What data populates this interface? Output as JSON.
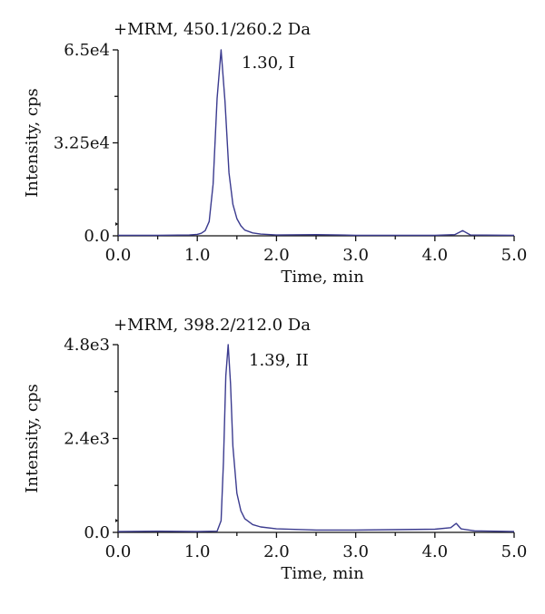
{
  "chart_data": [
    {
      "type": "line",
      "title": "+MRM, 450.1/260.2 Da",
      "xlabel": "Time, min",
      "ylabel": "Intensity, cps",
      "xlim": [
        0,
        5
      ],
      "ylim": [
        0,
        65000
      ],
      "x_ticks": [
        "0.0",
        "1.0",
        "2.0",
        "3.0",
        "4.0",
        "5.0"
      ],
      "y_ticks": [
        "0.0",
        "3.25e4",
        "6.5e4"
      ],
      "y_tick_values": [
        0,
        32500,
        65000
      ],
      "annotation": "1.30, I",
      "line_color": "#3b3b8f",
      "series": [
        {
          "x": [
            0,
            0.5,
            0.9,
            1.0,
            1.05,
            1.1,
            1.15,
            1.2,
            1.25,
            1.3,
            1.35,
            1.4,
            1.45,
            1.5,
            1.55,
            1.6,
            1.7,
            1.8,
            2.0,
            2.5,
            2.8,
            3.0,
            3.5,
            4.0,
            4.25,
            4.35,
            4.45,
            5.0
          ],
          "y": [
            200,
            200,
            300,
            500,
            900,
            1800,
            5000,
            18000,
            48000,
            65000,
            47000,
            22000,
            11000,
            6000,
            3500,
            2000,
            1000,
            600,
            300,
            400,
            300,
            200,
            200,
            200,
            400,
            1800,
            300,
            200
          ]
        }
      ]
    },
    {
      "type": "line",
      "title": "+MRM, 398.2/212.0 Da",
      "xlabel": "Time, min",
      "ylabel": "Intensity, cps",
      "xlim": [
        0,
        5
      ],
      "ylim": [
        0,
        4800
      ],
      "x_ticks": [
        "0.0",
        "1.0",
        "2.0",
        "3.0",
        "4.0",
        "5.0"
      ],
      "y_ticks": [
        "0.0",
        "2.4e3",
        "4.8e3"
      ],
      "y_tick_values": [
        0,
        2400,
        4800
      ],
      "annotation": "1.39, II",
      "line_color": "#3b3b8f",
      "series": [
        {
          "x": [
            0,
            0.5,
            1.0,
            1.25,
            1.3,
            1.33,
            1.36,
            1.39,
            1.42,
            1.45,
            1.5,
            1.55,
            1.6,
            1.7,
            1.8,
            2.0,
            2.5,
            3.0,
            3.5,
            4.0,
            4.2,
            4.27,
            4.33,
            4.5,
            5.0
          ],
          "y": [
            20,
            30,
            20,
            30,
            300,
            1800,
            4000,
            4800,
            3800,
            2200,
            1000,
            550,
            350,
            200,
            140,
            90,
            60,
            60,
            70,
            80,
            120,
            230,
            90,
            40,
            20
          ]
        }
      ]
    }
  ]
}
